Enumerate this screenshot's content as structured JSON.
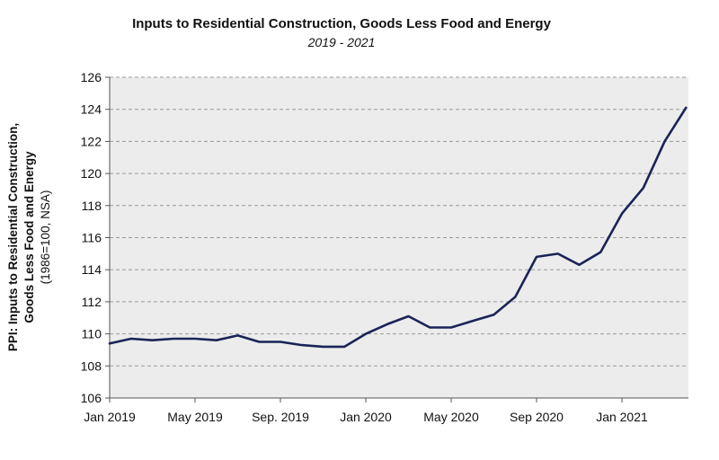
{
  "chart_data": {
    "type": "line",
    "title": "Inputs to Residential Construction, Goods Less Food and Energy",
    "subtitle": "2019 - 2021",
    "ylabel_lines": [
      "PPI: Inputs to Residential Construction,",
      "Goods Less Food and Energy",
      "(1986=100, NSA)"
    ],
    "ylim": [
      106,
      126
    ],
    "yticks": [
      106,
      108,
      110,
      112,
      114,
      116,
      118,
      120,
      122,
      124,
      126
    ],
    "xtick_labels": [
      "Jan 2019",
      "May 2019",
      "Sep. 2019",
      "Jan 2020",
      "May 2020",
      "Sep 2020",
      "Jan 2021"
    ],
    "grid": true,
    "colors": {
      "line": "#1a2358",
      "plot_bg": "#ececec",
      "grid": "#9a9a9a"
    },
    "series": [
      {
        "x": [
          "Jan 2019",
          "Feb 2019",
          "Mar 2019",
          "Apr 2019",
          "May 2019",
          "Jun 2019",
          "Jul 2019",
          "Aug 2019",
          "Sep 2019",
          "Oct 2019",
          "Nov 2019",
          "Dec 2019",
          "Jan 2020",
          "Feb 2020",
          "Mar 2020",
          "Apr 2020",
          "May 2020",
          "Jun 2020",
          "Jul 2020",
          "Aug 2020",
          "Sep 2020",
          "Oct 2020",
          "Nov 2020",
          "Dec 2020",
          "Jan 2021",
          "Feb 2021",
          "Mar 2021",
          "Apr 2021"
        ],
        "values": [
          109.4,
          109.7,
          109.6,
          109.7,
          109.7,
          109.6,
          109.9,
          109.5,
          109.5,
          109.3,
          109.2,
          109.2,
          110.0,
          110.6,
          111.1,
          110.4,
          110.4,
          110.8,
          111.2,
          112.3,
          114.8,
          115.0,
          114.3,
          115.1,
          117.5,
          119.1,
          122.0,
          124.1
        ]
      }
    ]
  }
}
